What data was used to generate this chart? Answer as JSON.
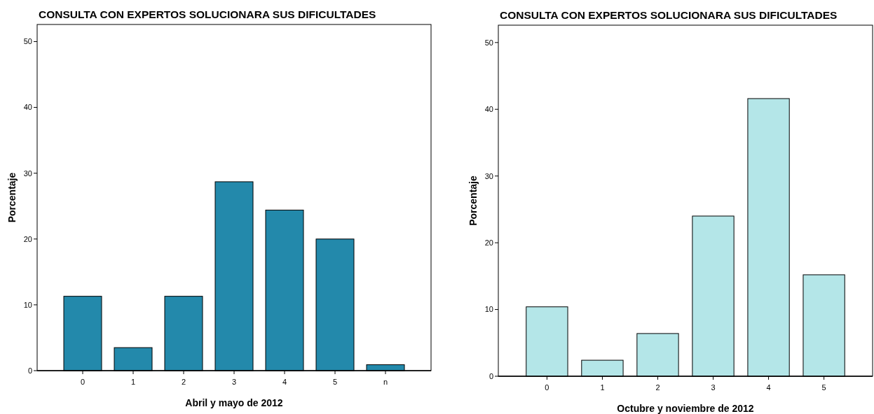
{
  "chart_data": [
    {
      "type": "bar",
      "title": "CONSULTA CON EXPERTOS SOLUCIONARA SUS DIFICULTADES",
      "xlabel": "Abril y mayo de 2012",
      "ylabel": "Porcentaje",
      "categories": [
        "0",
        "1",
        "2",
        "3",
        "4",
        "5",
        "n"
      ],
      "values": [
        11.3,
        3.5,
        11.3,
        28.7,
        24.4,
        20.0,
        0.9
      ],
      "color": "#2389ab",
      "ylim": [
        0,
        52.6
      ],
      "yticks": [
        0,
        10,
        20,
        30,
        40,
        50
      ],
      "grid": false
    },
    {
      "type": "bar",
      "title": "CONSULTA CON EXPERTOS SOLUCIONARA SUS DIFICULTADES",
      "xlabel": "Octubre y noviembre de 2012",
      "ylabel": "Porcentaje",
      "categories": [
        "0",
        "1",
        "2",
        "3",
        "4",
        "5"
      ],
      "values": [
        10.4,
        2.4,
        6.4,
        24.0,
        41.6,
        15.2
      ],
      "color": "#b4e6e8",
      "ylim": [
        0,
        52.6
      ],
      "yticks": [
        0,
        10,
        20,
        30,
        40,
        50
      ],
      "grid": false
    }
  ]
}
